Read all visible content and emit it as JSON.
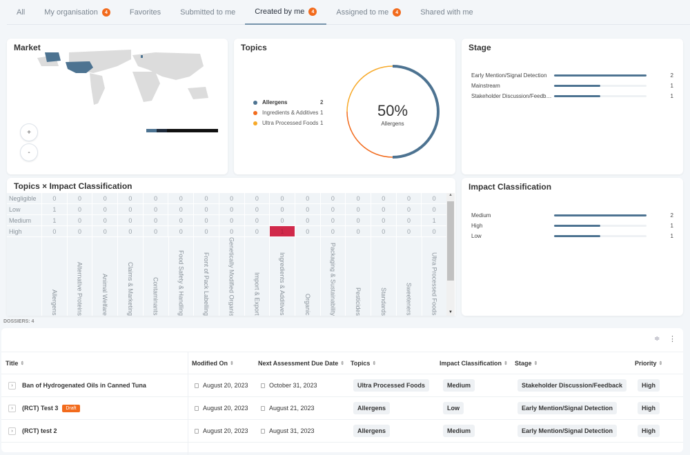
{
  "tabs": [
    {
      "label": "All"
    },
    {
      "label": "My organisation",
      "badge": "4"
    },
    {
      "label": "Favorites"
    },
    {
      "label": "Submitted to me"
    },
    {
      "label": "Created by me",
      "badge": "4",
      "active": true
    },
    {
      "label": "Assigned to me",
      "badge": "4"
    },
    {
      "label": "Shared with me"
    }
  ],
  "market": {
    "title": "Market",
    "zoom_in": "+",
    "zoom_out": "-",
    "highlighted": [
      "United States"
    ],
    "highlight_color": "#4d7391"
  },
  "topics": {
    "title": "Topics",
    "center_value": "50%",
    "center_label": "Allergens",
    "items": [
      {
        "label": "Allergens",
        "value": 2,
        "color": "#4d7391"
      },
      {
        "label": "Ingredients & Additives",
        "value": 1,
        "color": "#f26b1d"
      },
      {
        "label": "Ultra Processed Foods",
        "value": 1,
        "color": "#f7a928"
      }
    ]
  },
  "stage": {
    "title": "Stage",
    "max": 2,
    "items": [
      {
        "label": "Early Mention/Signal Detection",
        "value": 2
      },
      {
        "label": "Mainstream",
        "value": 1
      },
      {
        "label": "Stakeholder Discussion/Feedback",
        "value": 1
      }
    ]
  },
  "heatmap": {
    "title": "Topics × Impact Classification",
    "rows": [
      "Negligible",
      "Low",
      "Medium",
      "High"
    ],
    "columns": [
      "Allergens",
      "Alternative Proteins",
      "Animal Welfare",
      "Claims & Marketing",
      "Contaminants",
      "Food Safety & Handling",
      "Front of Pack Labelling",
      "Genetically Modified Organisms",
      "Import & Export",
      "Ingredients & Additives",
      "Organic",
      "Packaging & Sustainability",
      "Pesticides",
      "Standards",
      "Sweeteners",
      "Ultra Processed Foods"
    ],
    "values": [
      [
        0,
        0,
        0,
        0,
        0,
        0,
        0,
        0,
        0,
        0,
        0,
        0,
        0,
        0,
        0,
        0
      ],
      [
        1,
        0,
        0,
        0,
        0,
        0,
        0,
        0,
        0,
        0,
        0,
        0,
        0,
        0,
        0,
        0
      ],
      [
        1,
        0,
        0,
        0,
        0,
        0,
        0,
        0,
        0,
        0,
        0,
        0,
        0,
        0,
        0,
        1
      ],
      [
        0,
        0,
        0,
        0,
        0,
        0,
        0,
        0,
        0,
        1,
        0,
        0,
        0,
        0,
        0,
        0
      ]
    ]
  },
  "impact": {
    "title": "Impact Classification",
    "max": 2,
    "items": [
      {
        "label": "Medium",
        "value": 2
      },
      {
        "label": "High",
        "value": 1
      },
      {
        "label": "Low",
        "value": 1
      }
    ]
  },
  "dossiers_count": "DOSSIERS: 4",
  "table": {
    "headers": [
      "Title",
      "Modified On",
      "Next Assessment Due Date",
      "Topics",
      "Impact Classification",
      "Stage",
      "Priority"
    ],
    "rows": [
      {
        "title": "Ban of Hydrogenated Oils in Canned Tuna",
        "draft": "",
        "modified": "August 20, 2023",
        "due": "October 31, 2023",
        "topics": "Ultra Processed Foods",
        "impact": "Medium",
        "stage": "Stakeholder Discussion/Feedback",
        "priority": "High"
      },
      {
        "title": "(RCT) Test 3",
        "draft": "Draft",
        "modified": "August 20, 2023",
        "due": "August 21, 2023",
        "topics": "Allergens",
        "impact": "Low",
        "stage": "Early Mention/Signal Detection",
        "priority": "High"
      },
      {
        "title": "(RCT) test 2",
        "draft": "",
        "modified": "August 20, 2023",
        "due": "August 31, 2023",
        "topics": "Allergens",
        "impact": "Medium",
        "stage": "Early Mention/Signal Detection",
        "priority": "High"
      }
    ]
  }
}
